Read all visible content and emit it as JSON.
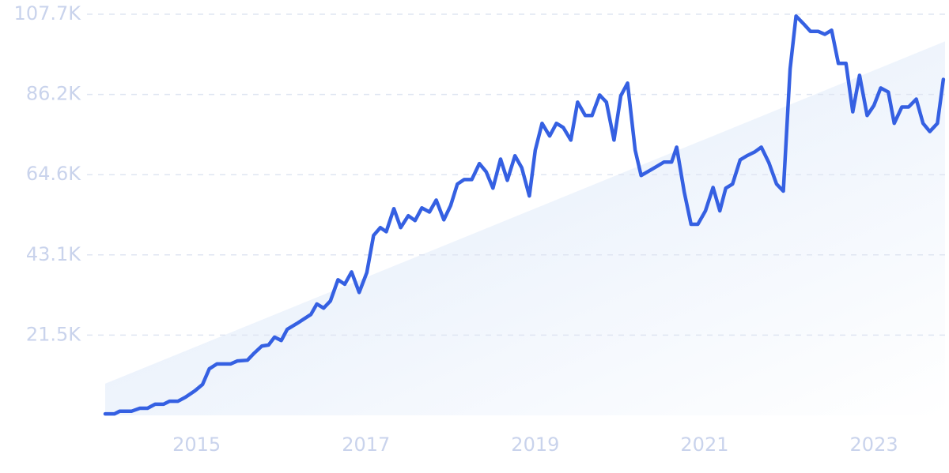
{
  "chart_data": {
    "type": "line",
    "x": [
      2013.92,
      2014.03,
      2014.09,
      2014.23,
      2014.33,
      2014.42,
      2014.51,
      2014.61,
      2014.68,
      2014.78,
      2014.87,
      2014.98,
      2015.07,
      2015.15,
      2015.24,
      2015.4,
      2015.48,
      2015.6,
      2015.68,
      2015.77,
      2015.85,
      2015.92,
      2016.0,
      2016.07,
      2016.18,
      2016.35,
      2016.42,
      2016.5,
      2016.58,
      2016.67,
      2016.75,
      2016.83,
      2016.92,
      2017.01,
      2017.09,
      2017.17,
      2017.24,
      2017.33,
      2017.41,
      2017.5,
      2017.58,
      2017.66,
      2017.75,
      2017.83,
      2017.92,
      2018.0,
      2018.08,
      2018.16,
      2018.25,
      2018.34,
      2018.42,
      2018.5,
      2018.59,
      2018.67,
      2018.76,
      2018.84,
      2018.93,
      2019.0,
      2019.08,
      2019.17,
      2019.25,
      2019.33,
      2019.42,
      2019.5,
      2019.59,
      2019.67,
      2019.76,
      2019.84,
      2019.93,
      2020.01,
      2020.09,
      2020.18,
      2020.25,
      2020.35,
      2020.44,
      2020.52,
      2020.61,
      2020.67,
      2020.76,
      2020.84,
      2020.92,
      2021.01,
      2021.1,
      2021.18,
      2021.25,
      2021.33,
      2021.42,
      2021.5,
      2021.59,
      2021.67,
      2021.76,
      2021.85,
      2021.93,
      2022.01,
      2022.08,
      2022.17,
      2022.25,
      2022.34,
      2022.42,
      2022.5,
      2022.58,
      2022.67,
      2022.75,
      2022.83,
      2022.92,
      2023.0,
      2023.08,
      2023.17,
      2023.24,
      2023.33,
      2023.41,
      2023.5,
      2023.58,
      2023.66,
      2023.75,
      2023.82
    ],
    "series": [
      {
        "color": "#3560e2",
        "values": [
          400,
          400,
          1100,
          1100,
          1900,
          1900,
          3000,
          3000,
          3800,
          3800,
          4900,
          6600,
          8300,
          12500,
          13800,
          13800,
          14600,
          14800,
          16700,
          18600,
          18900,
          21000,
          20100,
          23100,
          24600,
          27100,
          29900,
          28800,
          30700,
          36400,
          35200,
          38500,
          33000,
          38300,
          48300,
          50400,
          49300,
          55500,
          50400,
          53600,
          52300,
          55700,
          54600,
          57800,
          52500,
          56300,
          62100,
          63300,
          63300,
          67600,
          65400,
          61000,
          68800,
          63100,
          69700,
          66500,
          58900,
          71200,
          78400,
          75000,
          78400,
          77300,
          73900,
          84100,
          80500,
          80500,
          86000,
          84100,
          73900,
          85800,
          89200,
          71200,
          64400,
          65700,
          66900,
          68000,
          68000,
          72000,
          59900,
          51300,
          51300,
          54900,
          61200,
          54900,
          61000,
          62100,
          68600,
          69700,
          70700,
          72000,
          67800,
          62100,
          60200,
          93000,
          107200,
          105100,
          103100,
          103100,
          102300,
          103400,
          94500,
          94500,
          81500,
          91300,
          80500,
          83200,
          87900,
          86800,
          78400,
          82800,
          82800,
          84900,
          78400,
          76200,
          78400,
          90200
        ]
      }
    ],
    "trend_values": [
      8500,
      100400
    ],
    "trend_color": "#d3e2f8",
    "xlim": [
      2013.92,
      2023.84
    ],
    "xticks": [
      2015,
      2017,
      2019,
      2021,
      2023
    ],
    "ylim": [
      0,
      107700
    ],
    "yticks": [
      {
        "value": 21540,
        "label": "21.5K"
      },
      {
        "value": 43080,
        "label": "43.1K"
      },
      {
        "value": 64620,
        "label": "64.6K"
      },
      {
        "value": 86160,
        "label": "86.2K"
      },
      {
        "value": 107700,
        "label": "107.7K"
      }
    ],
    "grid": true
  }
}
